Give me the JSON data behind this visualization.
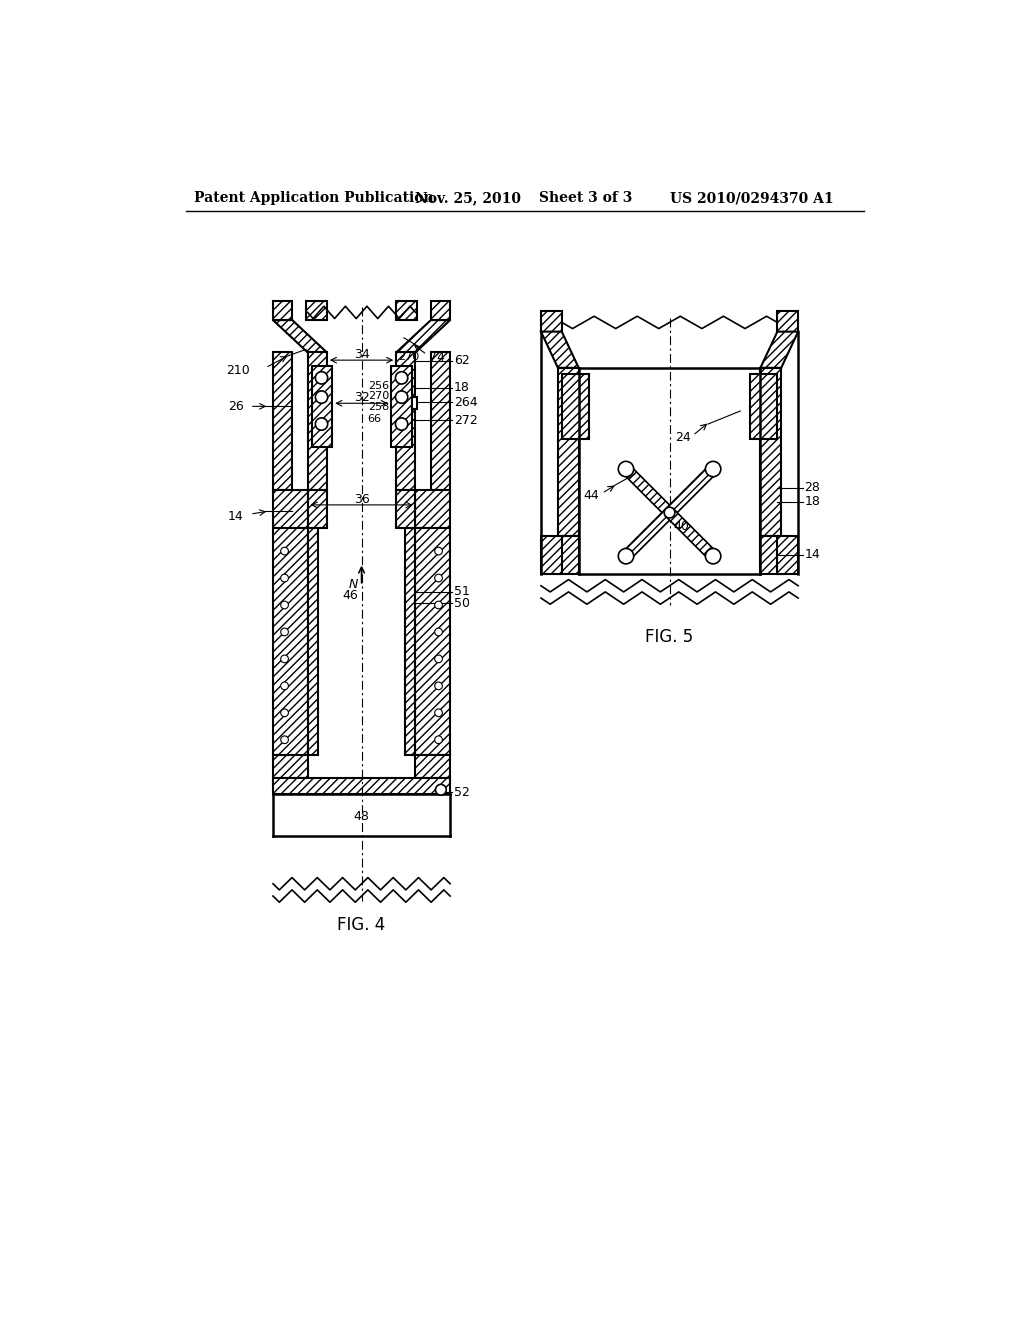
{
  "bg_color": "#ffffff",
  "header_text": "Patent Application Publication",
  "header_date": "Nov. 25, 2010",
  "header_sheet": "Sheet 3 of 3",
  "header_patent": "US 2010/0294370 A1",
  "fig4_label": "FIG. 4",
  "fig5_label": "FIG. 5"
}
